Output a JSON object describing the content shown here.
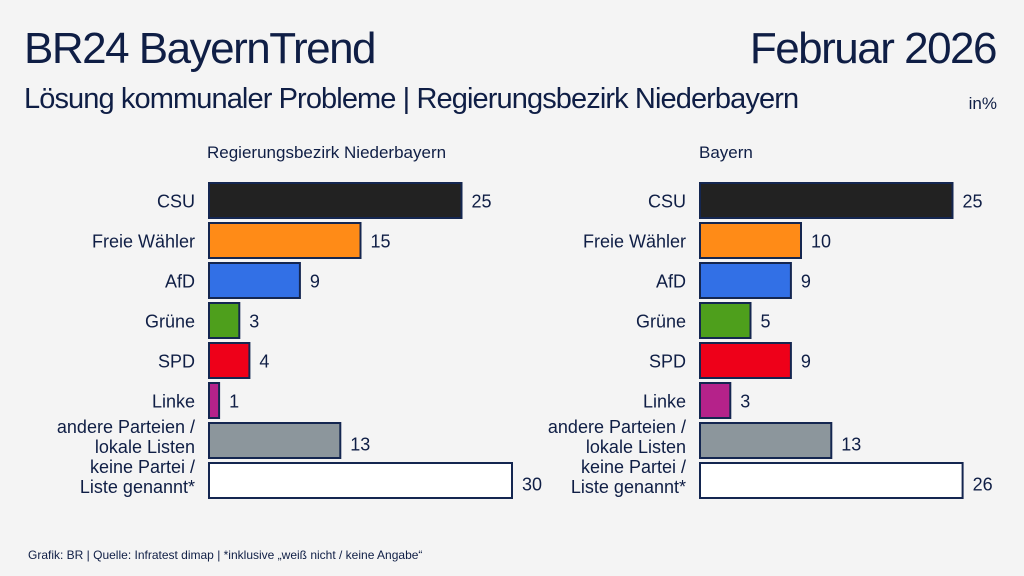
{
  "header": {
    "title": "BR24 BayernTrend",
    "date": "Februar 2026",
    "subtitle": "Lösung kommunaler Probleme | Regierungsbezirk Niederbayern",
    "unit": "in%"
  },
  "footer": "Grafik: BR | Quelle: Infratest dimap | *inklusive „weiß nicht / keine Angabe“",
  "colors": {
    "CSU": "#222222",
    "Freie Wähler": "#ff8b17",
    "AfD": "#3270e6",
    "Grüne": "#4e9f1c",
    "SPD": "#ee0019",
    "Linke": "#b5228a",
    "andere": "#8c969c",
    "keine": "#ffffff",
    "border": "#142650"
  },
  "chart_data": [
    {
      "type": "bar",
      "orientation": "horizontal",
      "title": "Regierungsbezirk Niederbayern",
      "categories": [
        [
          "CSU"
        ],
        [
          "Freie Wähler"
        ],
        [
          "AfD"
        ],
        [
          "Grüne"
        ],
        [
          "SPD"
        ],
        [
          "Linke"
        ],
        [
          "andere Parteien /",
          "lokale Listen"
        ],
        [
          "keine Partei /",
          "Liste genannt*"
        ]
      ],
      "values": [
        25,
        15,
        9,
        3,
        4,
        1,
        13,
        30
      ]
    },
    {
      "type": "bar",
      "orientation": "horizontal",
      "title": "Bayern",
      "categories": [
        [
          "CSU"
        ],
        [
          "Freie Wähler"
        ],
        [
          "AfD"
        ],
        [
          "Grüne"
        ],
        [
          "SPD"
        ],
        [
          "Linke"
        ],
        [
          "andere Parteien /",
          "lokale Listen"
        ],
        [
          "keine Partei /",
          "Liste genannt*"
        ]
      ],
      "values": [
        25,
        10,
        9,
        5,
        9,
        3,
        13,
        26
      ]
    }
  ]
}
